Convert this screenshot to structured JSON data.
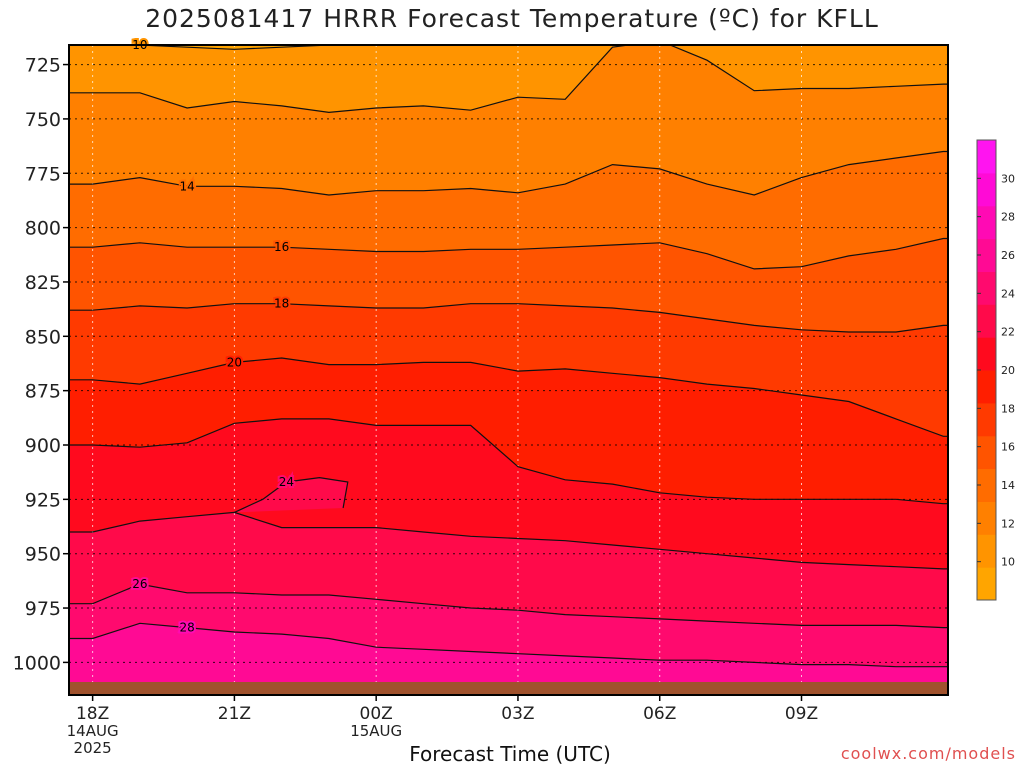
{
  "title": "2025081417 HRRR Forecast Temperature (ºC) for KFLL",
  "xlabel": "Forecast Time (UTC)",
  "credit": "coolwx.com/models",
  "colors": {
    "terrain": "#a0522d",
    "contour_line": "#111111",
    "band_colors": [
      "#ffa500",
      "#ff9400",
      "#ff8000",
      "#ff6c00",
      "#ff5400",
      "#ff3a00",
      "#ff1e00",
      "#ff0a1e",
      "#ff0a4a",
      "#ff0a6e",
      "#ff0a94",
      "#ff0ab4",
      "#ff0ad6",
      "#ff14f0"
    ]
  },
  "chart_data": {
    "type": "heatmap",
    "title": "2025081417 HRRR Forecast Temperature (ºC) for KFLL",
    "xlabel": "Forecast Time (UTC)",
    "ylabel": "",
    "x": [
      0,
      1,
      2,
      3,
      4,
      5,
      6,
      7,
      8,
      9,
      10,
      11,
      12,
      13,
      14,
      15,
      16,
      17,
      18
    ],
    "xlim": [
      -0.5,
      18.1
    ],
    "x_ticks": [
      {
        "x": 0,
        "label": "18Z",
        "sub": [
          "14AUG",
          "2025"
        ]
      },
      {
        "x": 3,
        "label": "21Z",
        "sub": []
      },
      {
        "x": 6,
        "label": "00Z",
        "sub": [
          "15AUG"
        ]
      },
      {
        "x": 9,
        "label": "03Z",
        "sub": []
      },
      {
        "x": 12,
        "label": "06Z",
        "sub": []
      },
      {
        "x": 15,
        "label": "09Z",
        "sub": []
      }
    ],
    "y_ticks": [
      725,
      750,
      775,
      800,
      825,
      850,
      875,
      900,
      925,
      950,
      975,
      1000
    ],
    "ylim": [
      1015,
      716
    ],
    "y_inverted": true,
    "grid": true,
    "colorbar": {
      "position": "right",
      "min": 8,
      "max": 32,
      "ticks": [
        10,
        12,
        14,
        16,
        18,
        20,
        22,
        24,
        26,
        28,
        30
      ]
    },
    "contours": [
      {
        "level": 10,
        "label": "10",
        "label_at": 1,
        "p": [
          716,
          716,
          717,
          718,
          717,
          716,
          716,
          716,
          716,
          716,
          716,
          716,
          716,
          716,
          716,
          716,
          716,
          716,
          716
        ]
      },
      {
        "level": 12,
        "label": "",
        "p": [
          738,
          738,
          745,
          742,
          744,
          747,
          745,
          744,
          746,
          740,
          741,
          717,
          714,
          723,
          737,
          736,
          736,
          735,
          734
        ]
      },
      {
        "level": 14,
        "label": "14",
        "label_at": 2,
        "p": [
          780,
          777,
          781,
          781,
          782,
          785,
          783,
          783,
          782,
          784,
          780,
          771,
          773,
          780,
          785,
          777,
          771,
          768,
          765
        ]
      },
      {
        "level": 16,
        "label": "16",
        "label_at": 4,
        "p": [
          809,
          807,
          809,
          809,
          809,
          810,
          811,
          811,
          810,
          810,
          809,
          808,
          807,
          812,
          819,
          818,
          813,
          810,
          805
        ]
      },
      {
        "level": 18,
        "label": "18",
        "label_at": 4,
        "p": [
          838,
          836,
          837,
          835,
          835,
          836,
          837,
          837,
          835,
          835,
          836,
          837,
          839,
          842,
          845,
          847,
          848,
          848,
          845
        ]
      },
      {
        "level": 20,
        "label": "20",
        "label_at": 3,
        "p": [
          870,
          872,
          867,
          862,
          860,
          863,
          863,
          862,
          862,
          866,
          865,
          867,
          869,
          872,
          874,
          877,
          880,
          888,
          896
        ]
      },
      {
        "level": 22,
        "label": "",
        "p": [
          900,
          901,
          899,
          890,
          888,
          888,
          891,
          891,
          891,
          910,
          916,
          918,
          922,
          924,
          925,
          925,
          925,
          925,
          927
        ]
      },
      {
        "level": 24,
        "label": "",
        "p": [
          940,
          935,
          933,
          931,
          938,
          938,
          938,
          940,
          942,
          943,
          944,
          946,
          948,
          950,
          952,
          954,
          955,
          956,
          957
        ]
      },
      {
        "level": 24,
        "label": "24",
        "label_at": 2,
        "closed_top": true,
        "xs": [
          3,
          3.6,
          4.1,
          4.8,
          5.4,
          5.3
        ],
        "p": [
          931,
          925,
          917,
          915,
          917,
          929
        ]
      },
      {
        "level": 26,
        "label": "26",
        "label_at": 1,
        "p": [
          973,
          964,
          968,
          968,
          969,
          969,
          971,
          973,
          975,
          976,
          978,
          979,
          980,
          981,
          982,
          983,
          983,
          983,
          984
        ]
      },
      {
        "level": 28,
        "label": "28",
        "label_at": 2,
        "p": [
          989,
          982,
          984,
          986,
          987,
          989,
          993,
          994,
          995,
          996,
          997,
          998,
          999,
          999,
          1000,
          1001,
          1001,
          1002,
          1002
        ]
      },
      {
        "level": 30,
        "label": "",
        "p": [
          1012,
          1010,
          1011,
          1011,
          1012,
          1013,
          1014,
          1014,
          1014,
          1013,
          1014,
          1015,
          1015,
          1015,
          1015,
          1015,
          1015,
          1015,
          1015
        ]
      }
    ]
  }
}
